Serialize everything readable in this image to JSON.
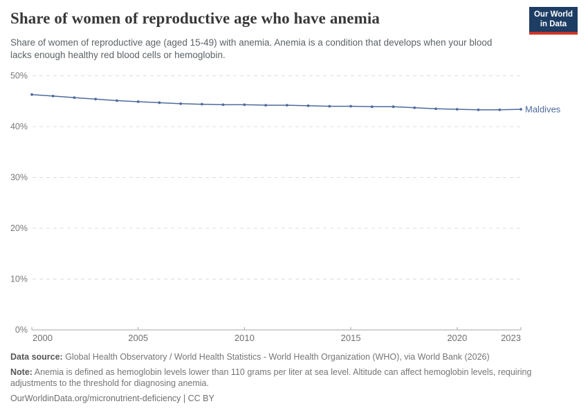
{
  "header": {
    "title": "Share of women of reproductive age who have anemia",
    "subtitle": "Share of women of reproductive age (aged 15-49) with anemia. Anemia is a condition that develops when your blood lacks enough healthy red blood cells or hemoglobin.",
    "logo": {
      "line1": "Our World",
      "line2": "in Data"
    }
  },
  "chart_data": {
    "type": "line",
    "title": "Share of women of reproductive age who have anemia",
    "x": [
      2000,
      2001,
      2002,
      2003,
      2004,
      2005,
      2006,
      2007,
      2008,
      2009,
      2010,
      2011,
      2012,
      2013,
      2014,
      2015,
      2016,
      2017,
      2018,
      2019,
      2020,
      2021,
      2022,
      2023
    ],
    "series": [
      {
        "name": "Maldives",
        "color": "#4C6A9C",
        "values": [
          46.3,
          46.0,
          45.7,
          45.4,
          45.1,
          44.9,
          44.7,
          44.5,
          44.4,
          44.3,
          44.3,
          44.2,
          44.2,
          44.1,
          44.0,
          44.0,
          43.9,
          43.9,
          43.7,
          43.5,
          43.4,
          43.3,
          43.3,
          43.4
        ]
      }
    ],
    "xlabel": "",
    "ylabel": "",
    "xlim": [
      2000,
      2023
    ],
    "ylim": [
      0,
      50
    ],
    "xticks": [
      2000,
      2005,
      2010,
      2015,
      2020,
      2023
    ],
    "yticks": [
      0,
      10,
      20,
      30,
      40,
      50
    ],
    "ytick_suffix": "%",
    "grid": "horizontal-dashed",
    "legend": "series-end-label"
  },
  "footer": {
    "data_source_label": "Data source:",
    "data_source_text": " Global Health Observatory / World Health Statistics - World Health Organization (WHO), via World Bank (2026)",
    "note_label": "Note:",
    "note_text": " Anemia is defined as hemoglobin levels lower than 110 grams per liter at sea level. Altitude can affect hemoglobin levels, requiring adjustments to the threshold for diagnosing anemia.",
    "link": "OurWorldinData.org/micronutrient-deficiency | CC BY"
  },
  "colors": {
    "line": "#4C6A9C",
    "grid": "#dcdcdc",
    "axis": "#a5a5a5",
    "tick_label": "#787878",
    "logo_bg": "#1d3d63",
    "logo_red": "#cc3527"
  }
}
